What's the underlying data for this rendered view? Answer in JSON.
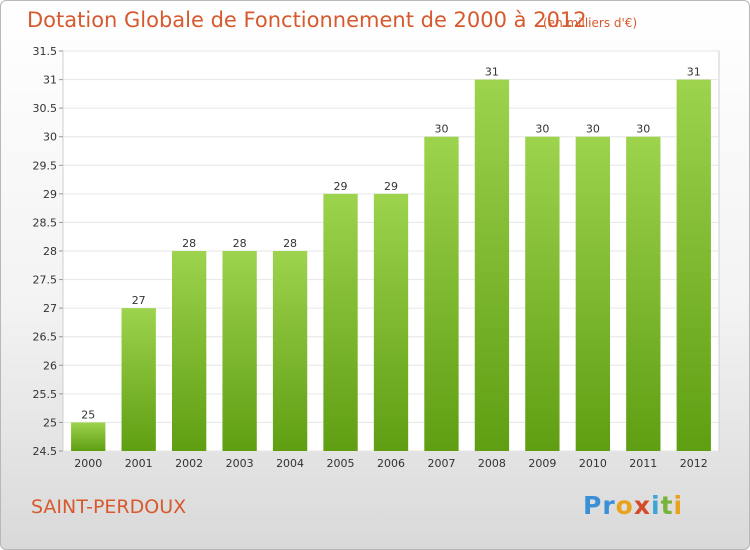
{
  "header": {
    "title": "Dotation Globale de Fonctionnement de 2000 à 2012",
    "unit": "(en milliers d'€)"
  },
  "footer": {
    "place": "SAINT-PERDOUX",
    "logo": "Proxiti"
  },
  "colors": {
    "bar_light": "#9dd34d",
    "bar_dark": "#5f9e12",
    "title": "#d65a2d",
    "grid": "#e6e6e6"
  },
  "chart_data": {
    "type": "bar",
    "title": "Dotation Globale de Fonctionnement de 2000 à 2012",
    "subtitle": "(en milliers d'€)",
    "categories": [
      "2000",
      "2001",
      "2002",
      "2003",
      "2004",
      "2005",
      "2006",
      "2007",
      "2008",
      "2009",
      "2010",
      "2011",
      "2012"
    ],
    "values": [
      25,
      27,
      28,
      28,
      28,
      29,
      29,
      30,
      31,
      30,
      30,
      30,
      31
    ],
    "data_labels": [
      "25",
      "27",
      "28",
      "28",
      "28",
      "29",
      "29",
      "30",
      "31",
      "30",
      "30",
      "30",
      "31"
    ],
    "ylim": [
      24.5,
      31.5
    ],
    "yticks": [
      24.5,
      25,
      25.5,
      26,
      26.5,
      27,
      27.5,
      28,
      28.5,
      29,
      29.5,
      30,
      30.5,
      31,
      31.5
    ],
    "ytick_labels": [
      "24.5",
      "25",
      "25.5",
      "26",
      "26.5",
      "27",
      "27.5",
      "28",
      "28.5",
      "29",
      "29.5",
      "30",
      "30.5",
      "31",
      "31.5"
    ],
    "grid": true,
    "xlabel": "",
    "ylabel": ""
  }
}
